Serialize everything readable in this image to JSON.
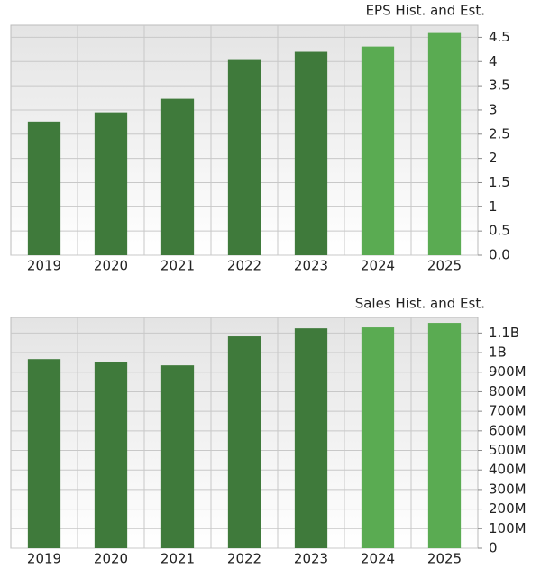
{
  "chart_data": [
    {
      "type": "bar",
      "title": "EPS Hist. and Est.",
      "categories": [
        "2019",
        "2020",
        "2021",
        "2022",
        "2023",
        "2024",
        "2025"
      ],
      "values": [
        2.76,
        2.95,
        3.23,
        4.05,
        4.2,
        4.31,
        4.59
      ],
      "colors": [
        "#3f7a3b",
        "#3f7a3b",
        "#3f7a3b",
        "#3f7a3b",
        "#3f7a3b",
        "#5aab52",
        "#5aab52"
      ],
      "ylim": [
        0,
        4.75
      ],
      "yticks": [
        {
          "value": 0,
          "label": "0.0"
        },
        0.5,
        1,
        1.5,
        2,
        2.5,
        3,
        3.5,
        4,
        4.5
      ],
      "grid": true
    },
    {
      "type": "bar",
      "title": "Sales Hist. and Est.",
      "categories": [
        "2019",
        "2020",
        "2021",
        "2022",
        "2023",
        "2024",
        "2025"
      ],
      "values": [
        967000000,
        954000000,
        935000000,
        1083000000,
        1124000000,
        1129000000,
        1152000000
      ],
      "colors": [
        "#3f7a3b",
        "#3f7a3b",
        "#3f7a3b",
        "#3f7a3b",
        "#3f7a3b",
        "#5aab52",
        "#5aab52"
      ],
      "ylim": [
        0,
        1180000000
      ],
      "yticks": [
        0,
        {
          "value": 100000000,
          "label": "100M"
        },
        {
          "value": 200000000,
          "label": "200M"
        },
        {
          "value": 300000000,
          "label": "300M"
        },
        {
          "value": 400000000,
          "label": "400M"
        },
        {
          "value": 500000000,
          "label": "500M"
        },
        {
          "value": 600000000,
          "label": "600M"
        },
        {
          "value": 700000000,
          "label": "700M"
        },
        {
          "value": 800000000,
          "label": "800M"
        },
        {
          "value": 900000000,
          "label": "900M"
        },
        {
          "value": 1000000000,
          "label": "1B"
        },
        {
          "value": 1100000000,
          "label": "1.1B"
        }
      ],
      "grid": true
    }
  ]
}
